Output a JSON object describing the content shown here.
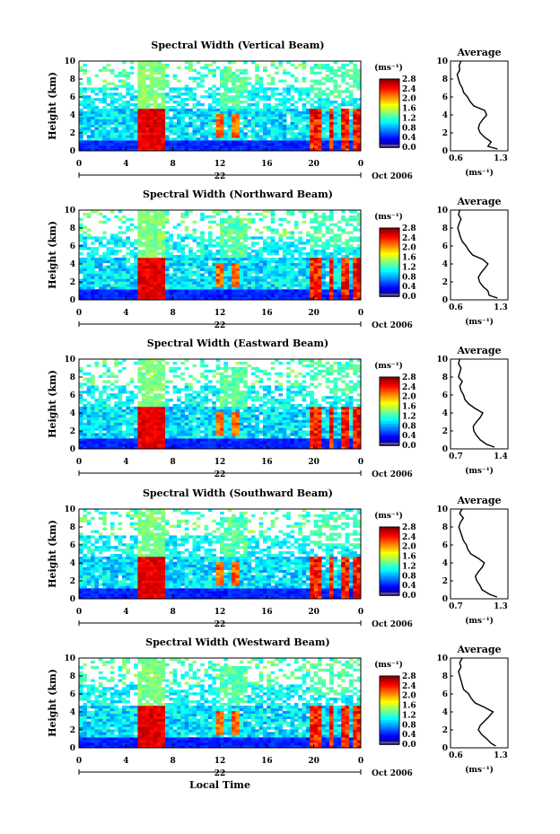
{
  "figure": {
    "xlabel": "Local Time",
    "day_label": "22",
    "month_label": "Oct 2006"
  },
  "chart_data": [
    {
      "type": "heatmap",
      "title": "Spectral Width (Vertical Beam)",
      "ylabel": "Height (km)",
      "xlabel": "Local Time",
      "xlim": [
        0,
        24
      ],
      "ylim": [
        0,
        10
      ],
      "xticks": [
        "0",
        "4",
        "8",
        "12",
        "16",
        "20",
        "0"
      ],
      "yticks": [
        "0",
        "2",
        "4",
        "6",
        "8",
        "10"
      ],
      "colorbar": {
        "unit": "(ms⁻¹)",
        "ticks": [
          "0.0",
          "0.4",
          "0.8",
          "1.2",
          "1.6",
          "2.0",
          "2.4",
          "2.8"
        ],
        "range": [
          0,
          2.8
        ]
      },
      "profile": {
        "title": "Average",
        "xlabel": "(ms⁻¹)",
        "xlim": [
          0.6,
          1.3
        ],
        "xticks": [
          "0.6",
          "1.3"
        ],
        "yticks": [
          "0",
          "2",
          "4",
          "6",
          "8",
          "10"
        ],
        "heights": [
          0.2,
          0.5,
          1.0,
          1.5,
          2.0,
          2.5,
          3.0,
          3.5,
          4.0,
          4.5,
          5.0,
          5.5,
          6.0,
          6.5,
          7.0,
          7.5,
          8.0,
          8.5,
          9.0,
          9.5,
          10.0
        ],
        "values": [
          1.25,
          1.1,
          1.15,
          1.05,
          0.98,
          0.95,
          0.97,
          1.02,
          1.08,
          1.05,
          0.88,
          0.82,
          0.78,
          0.72,
          0.7,
          0.66,
          0.64,
          0.62,
          0.66,
          0.65,
          0.68
        ]
      }
    },
    {
      "type": "heatmap",
      "title": "Spectral Width (Northward Beam)",
      "ylabel": "Height (km)",
      "xlabel": "Local Time",
      "xlim": [
        0,
        24
      ],
      "ylim": [
        0,
        10
      ],
      "xticks": [
        "0",
        "4",
        "8",
        "12",
        "16",
        "20",
        "0"
      ],
      "yticks": [
        "0",
        "2",
        "4",
        "6",
        "8",
        "10"
      ],
      "colorbar": {
        "unit": "(ms⁻¹)",
        "ticks": [
          "0.0",
          "0.4",
          "0.8",
          "1.2",
          "1.6",
          "2.0",
          "2.4",
          "2.8"
        ],
        "range": [
          0,
          2.8
        ]
      },
      "profile": {
        "title": "Average",
        "xlabel": "(ms⁻¹)",
        "xlim": [
          0.6,
          1.3
        ],
        "xticks": [
          "0.6",
          "1.3"
        ],
        "yticks": [
          "0",
          "2",
          "4",
          "6",
          "8",
          "10"
        ],
        "heights": [
          0.2,
          0.5,
          1.0,
          1.5,
          2.0,
          2.5,
          3.0,
          3.5,
          4.0,
          4.5,
          5.0,
          5.5,
          6.0,
          6.5,
          7.0,
          7.5,
          8.0,
          8.5,
          9.0,
          9.5,
          10.0
        ],
        "values": [
          1.25,
          1.12,
          1.1,
          1.02,
          0.97,
          0.95,
          0.99,
          1.05,
          1.1,
          1.02,
          0.86,
          0.8,
          0.76,
          0.7,
          0.67,
          0.65,
          0.63,
          0.65,
          0.68,
          0.64,
          0.66
        ]
      }
    },
    {
      "type": "heatmap",
      "title": "Spectral Width (Eastward Beam)",
      "ylabel": "Height (km)",
      "xlabel": "Local Time",
      "xlim": [
        0,
        24
      ],
      "ylim": [
        0,
        10
      ],
      "xticks": [
        "0",
        "4",
        "8",
        "12",
        "16",
        "20",
        "0"
      ],
      "yticks": [
        "0",
        "2",
        "4",
        "6",
        "8",
        "10"
      ],
      "colorbar": {
        "unit": "(ms⁻¹)",
        "ticks": [
          "0.0",
          "0.4",
          "0.8",
          "1.2",
          "1.6",
          "2.0",
          "2.4",
          "2.8"
        ],
        "range": [
          0,
          2.8
        ]
      },
      "profile": {
        "title": "Average",
        "xlabel": "(ms⁻¹)",
        "xlim": [
          0.7,
          1.4
        ],
        "xticks": [
          "0.7",
          "1.4"
        ],
        "yticks": [
          "0",
          "2",
          "4",
          "6",
          "8",
          "10"
        ],
        "heights": [
          0.2,
          0.5,
          1.0,
          1.5,
          2.0,
          2.5,
          3.0,
          3.5,
          4.0,
          4.5,
          5.0,
          5.5,
          6.0,
          6.5,
          7.0,
          7.5,
          8.0,
          8.5,
          9.0,
          9.5,
          10.0
        ],
        "values": [
          1.3,
          1.18,
          1.08,
          1.02,
          0.98,
          0.97,
          1.02,
          1.08,
          1.12,
          1.0,
          0.9,
          0.84,
          0.82,
          0.78,
          0.76,
          0.8,
          0.74,
          0.76,
          0.78,
          0.74,
          0.76
        ]
      }
    },
    {
      "type": "heatmap",
      "title": "Spectral Width (Southward Beam)",
      "ylabel": "Height (km)",
      "xlabel": "Local Time",
      "xlim": [
        0,
        24
      ],
      "ylim": [
        0,
        10
      ],
      "xticks": [
        "0",
        "4",
        "8",
        "12",
        "16",
        "20",
        "0"
      ],
      "yticks": [
        "0",
        "2",
        "4",
        "6",
        "8",
        "10"
      ],
      "colorbar": {
        "unit": "(ms⁻¹)",
        "ticks": [
          "0.0",
          "0.4",
          "0.8",
          "1.2",
          "1.6",
          "2.0",
          "2.4",
          "2.8"
        ],
        "range": [
          0,
          2.8
        ]
      },
      "profile": {
        "title": "Average",
        "xlabel": "(ms⁻¹)",
        "xlim": [
          0.7,
          1.3
        ],
        "xticks": [
          "0.7",
          "1.3"
        ],
        "yticks": [
          "0",
          "2",
          "4",
          "6",
          "8",
          "10"
        ],
        "heights": [
          0.2,
          0.5,
          1.0,
          1.5,
          2.0,
          2.5,
          3.0,
          3.5,
          4.0,
          4.5,
          5.0,
          5.5,
          6.0,
          6.5,
          7.0,
          7.5,
          8.0,
          8.5,
          9.0,
          9.5,
          10.0
        ],
        "values": [
          1.25,
          1.15,
          1.05,
          1.02,
          0.98,
          0.96,
          1.0,
          1.05,
          1.08,
          1.0,
          0.9,
          0.86,
          0.84,
          0.8,
          0.78,
          0.76,
          0.74,
          0.76,
          0.8,
          0.75,
          0.78
        ]
      }
    },
    {
      "type": "heatmap",
      "title": "Spectral Width (Westward Beam)",
      "ylabel": "Height (km)",
      "xlabel": "Local Time",
      "xlim": [
        0,
        24
      ],
      "ylim": [
        0,
        10
      ],
      "xticks": [
        "0",
        "4",
        "8",
        "12",
        "16",
        "20",
        "0"
      ],
      "yticks": [
        "0",
        "2",
        "4",
        "6",
        "8",
        "10"
      ],
      "colorbar": {
        "unit": "(ms⁻¹)",
        "ticks": [
          "0.0",
          "0.4",
          "0.8",
          "1.2",
          "1.6",
          "2.0",
          "2.4",
          "2.8"
        ],
        "range": [
          0,
          2.8
        ]
      },
      "profile": {
        "title": "Average",
        "xlabel": "(ms⁻¹)",
        "xlim": [
          0.6,
          1.3
        ],
        "xticks": [
          "0.6",
          "1.3"
        ],
        "yticks": [
          "0",
          "2",
          "4",
          "6",
          "8",
          "10"
        ],
        "heights": [
          0.2,
          0.5,
          1.0,
          1.5,
          2.0,
          2.5,
          3.0,
          3.5,
          4.0,
          4.5,
          5.0,
          5.5,
          6.0,
          6.5,
          7.0,
          7.5,
          8.0,
          8.5,
          9.0,
          9.5,
          10.0
        ],
        "values": [
          1.22,
          1.15,
          1.08,
          1.0,
          0.95,
          0.98,
          1.05,
          1.12,
          1.18,
          1.05,
          0.9,
          0.84,
          0.8,
          0.72,
          0.7,
          0.68,
          0.66,
          0.64,
          0.68,
          0.66,
          0.7
        ]
      }
    }
  ]
}
